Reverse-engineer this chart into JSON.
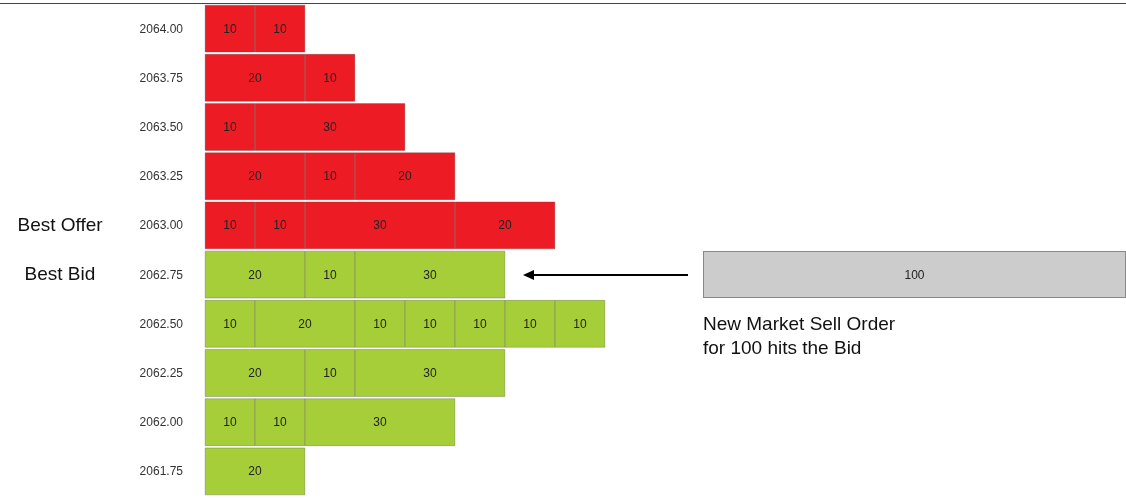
{
  "chart_data": {
    "type": "bar",
    "orientation": "horizontal",
    "stacked": true,
    "data_labels": true,
    "tick_labels": "y",
    "categories": [
      "2064.00",
      "2063.75",
      "2063.50",
      "2063.25",
      "2063.00",
      "2062.75",
      "2062.50",
      "2062.25",
      "2062.00",
      "2061.75"
    ],
    "series": [
      {
        "colors": [
          "#ed1c24",
          "#ed1c24",
          "#ed1c24",
          "#ed1c24",
          "#ed1c24",
          "#a6ce39",
          "#a6ce39",
          "#a6ce39",
          "#a6ce39",
          "#a6ce39"
        ],
        "values": [
          10,
          20,
          10,
          20,
          10,
          20,
          10,
          20,
          10,
          20
        ]
      },
      {
        "colors": [
          "#ed1c24",
          "#ed1c24",
          "#ed1c24",
          "#ed1c24",
          "#ed1c24",
          "#a6ce39",
          "#a6ce39",
          "#a6ce39",
          "#a6ce39",
          "#a6ce39"
        ],
        "values": [
          10,
          10,
          30,
          10,
          10,
          10,
          20,
          10,
          10,
          null
        ]
      },
      {
        "colors": [
          "#ed1c24",
          "#ed1c24",
          "#ed1c24",
          "#ed1c24",
          "#ed1c24",
          "#a6ce39",
          "#a6ce39",
          "#a6ce39",
          "#a6ce39",
          "#a6ce39"
        ],
        "values": [
          null,
          null,
          null,
          20,
          30,
          30,
          10,
          30,
          30,
          null
        ]
      },
      {
        "colors": [
          "#ed1c24",
          "#ed1c24",
          "#ed1c24",
          "#ed1c24",
          "#ed1c24",
          "#a6ce39",
          "#a6ce39",
          "#a6ce39",
          "#a6ce39",
          "#a6ce39"
        ],
        "values": [
          null,
          null,
          null,
          null,
          20,
          null,
          10,
          null,
          null,
          null
        ]
      },
      {
        "colors": [
          "#ed1c24",
          "#ed1c24",
          "#ed1c24",
          "#ed1c24",
          "#ed1c24",
          "#a6ce39",
          "#a6ce39",
          "#a6ce39",
          "#a6ce39",
          "#a6ce39"
        ],
        "values": [
          null,
          null,
          null,
          null,
          null,
          null,
          10,
          null,
          null,
          null
        ]
      },
      {
        "colors": [
          "#ed1c24",
          "#ed1c24",
          "#ed1c24",
          "#ed1c24",
          "#ed1c24",
          "#a6ce39",
          "#a6ce39",
          "#a6ce39",
          "#a6ce39",
          "#a6ce39"
        ],
        "values": [
          null,
          null,
          null,
          null,
          null,
          null,
          10,
          null,
          null,
          null
        ]
      },
      {
        "colors": [
          "#ed1c24",
          "#ed1c24",
          "#ed1c24",
          "#ed1c24",
          "#ed1c24",
          "#a6ce39",
          "#a6ce39",
          "#a6ce39",
          "#a6ce39",
          "#a6ce39"
        ],
        "values": [
          null,
          null,
          null,
          null,
          null,
          null,
          10,
          null,
          null,
          null
        ]
      }
    ],
    "annotations": [
      "Best Offer",
      "Best Bid",
      "New Market Sell Order\nfor 100 hits the Bid",
      "100"
    ]
  }
}
